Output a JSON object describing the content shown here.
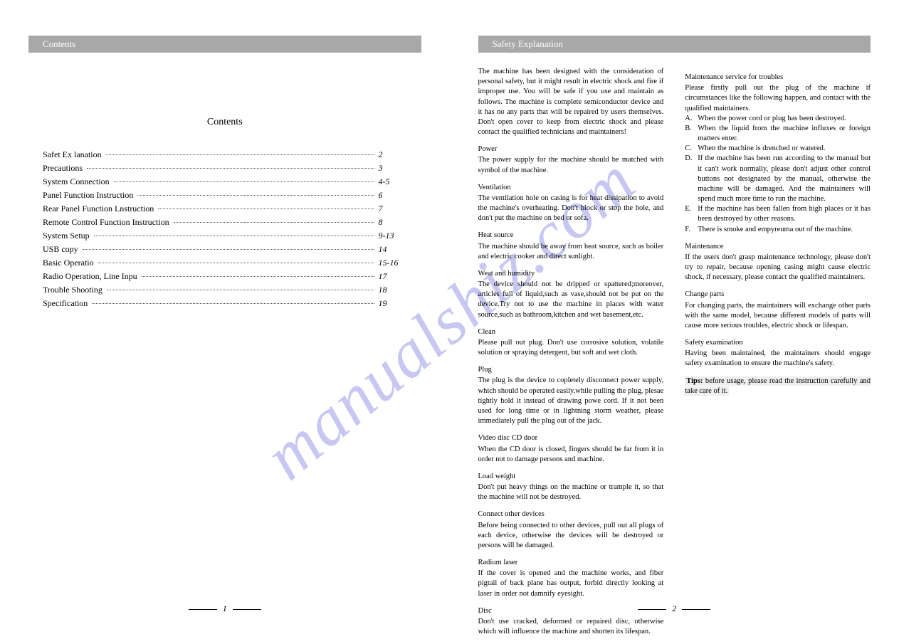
{
  "watermark": "manualshiz.com",
  "left_page": {
    "header": "Contents",
    "title": "Contents",
    "toc": [
      {
        "label": "Safet Ex lanation",
        "page": "2"
      },
      {
        "label": "Precautions",
        "page": "3"
      },
      {
        "label": "System Connection",
        "page": "4-5"
      },
      {
        "label": "Panel Function Instruction",
        "page": "6"
      },
      {
        "label": "Rear Panel Function Lnstruction",
        "page": "7"
      },
      {
        "label": "Remote Control Function Instruction",
        "page": "8"
      },
      {
        "label": "System Setup",
        "page": "9-13"
      },
      {
        "label": "USB copy",
        "page": "14"
      },
      {
        "label": "Basic Operatio",
        "page": "15-16"
      },
      {
        "label": "Radio Operation, Line Inpu",
        "page": "17"
      },
      {
        "label": "Trouble Shooting",
        "page": "18"
      },
      {
        "label": "Specification",
        "page": "19"
      }
    ],
    "page_number": "1"
  },
  "right_page": {
    "header": "Safety Explanation",
    "intro": "The machine has been designed with the consideration of personal safety, but it might result in electric shock and fire if improper use. You will be safe if you use and maintain as follows. The machine is complete semiconductor device and it has no any parts that will be repaired by users themselves. Don't open cover to keep from electric shock and please contact the qualified technicians and maintainers!",
    "sections_left": [
      {
        "h": "Power",
        "t": "The power supply for the machine should be matched with symbol of the machine."
      },
      {
        "h": "Ventilation",
        "t": "The ventilation hole on casing is for heat dissipation to avoid the machine's overheating. Don't block or stop the hole, and don't put the machine on bed or sofa."
      },
      {
        "h": "Heat source",
        "t": "The machine should be away from heat source, such as boiler and electric cooker and direct sunlight."
      },
      {
        "h": "Weat and humidity",
        "t": "The device should not be dripped or spattered;moreover, articles full of liquid,such as vase,should not be put on the device.Try not to use the machine in places with water source,such as bathroom,kitchen and wet basement,etc."
      },
      {
        "h": "Clean",
        "t": "Please pull out plug. Don't use corrosive solution, volatile solution or spraying detergent, but soft and wet cloth."
      },
      {
        "h": "Plug",
        "t": "The plug is the device to copletely disconnect power supply, which should be operated easily,while pulling the plug, plesae tightly hold it instead of drawing powe cord. If it not been used for long time or in lightning storm weather, please immediately pull the plug out of the jack."
      },
      {
        "h": "Video disc CD door",
        "t": "When the CD door is closed, fingers should be far from it in order not to damage persons and machine."
      },
      {
        "h": "Load weight",
        "t": "Don't put heavy things on the machine or trample it, so that the machine will not be destroyed."
      },
      {
        "h": "Connect other devices",
        "t": "Before being connected to other devices, pull out all plugs of each device, otherwise the devices will be destroyed or persons will be damaged."
      },
      {
        "h": "Radium laser",
        "t": "If the cover is opened and the machine works, and fiber pigtail of back plane has output, forbid directly looking at laser in order not damnify eyesight."
      },
      {
        "h": "Disc",
        "t": "Don't use cracked, deformed or repaired disc, otherwise which will influence the machine and shorten its lifespan."
      }
    ],
    "troubles_head": "Maintenance service for troubles",
    "troubles_intro": "Please firstly pull out the plug of the machine if circumstances like the following happen, and contact with the qualified maintainers.",
    "troubles": [
      {
        "l": "A.",
        "t": "When the power cord or plug has been destroyed."
      },
      {
        "l": "B.",
        "t": "When the liquid from the machine influxes or foreign matters enter."
      },
      {
        "l": "C.",
        "t": "When the machine is drenched or watered."
      },
      {
        "l": "D.",
        "t": "If the machine has been run according to the manual but it can't work normally, please don't adjust other control buttons not designated by the manual, otherwise the machine will be damaged. And the maintainers will spend much more time to run the machine."
      },
      {
        "l": "E.",
        "t": "If the machine has been fallen from high places or it has been destroyed by other reasons."
      },
      {
        "l": "F.",
        "t": "There is smoke and empyreuma out of the machine."
      }
    ],
    "sections_right": [
      {
        "h": "Maintenance",
        "t": "If the users don't grasp maintenance technology, please don't try to repair, because opening casing might cause electric shock, if necessary, please contact the qualified maintainers."
      },
      {
        "h": "Change parts",
        "t": "For changing parts, the maintainers will exchange other parts with the same model, because different models of parts will cause more serious troubles, electric shock or lifespan."
      },
      {
        "h": "Safety examination",
        "t": "Having been maintained, the maintainers should engage safety examination to ensure the machine's safety."
      }
    ],
    "tips_label": "Tips:",
    "tips_text": " before usage, please read the instruction carefully and take care of it.",
    "page_number": "2"
  }
}
